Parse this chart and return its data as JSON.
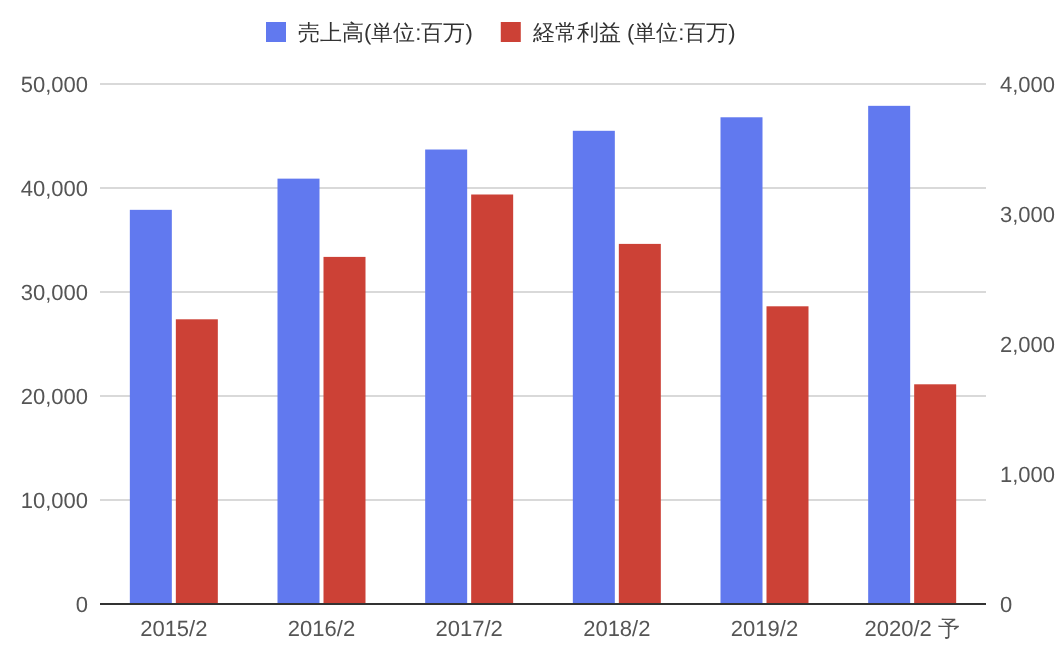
{
  "chart_data": {
    "type": "bar",
    "categories": [
      "2015/2",
      "2016/2",
      "2017/2",
      "2018/2",
      "2019/2",
      "2020/2 予"
    ],
    "series": [
      {
        "name": "売上高(単位:百万)",
        "color": "#6179ef",
        "values": [
          37900,
          40900,
          43700,
          45500,
          46800,
          47900
        ]
      },
      {
        "name": "経常利益 (単位:百万)",
        "color": "#cc4136",
        "axis": "y2",
        "values": [
          2190,
          2670,
          3150,
          2770,
          2290,
          1690
        ]
      }
    ],
    "ylim": [
      0,
      50000
    ],
    "yticks": [
      {
        "value": 0,
        "label": "0"
      },
      {
        "value": 10000,
        "label": "10,000"
      },
      {
        "value": 20000,
        "label": "20,000"
      },
      {
        "value": 30000,
        "label": "30,000"
      },
      {
        "value": 40000,
        "label": "40,000"
      },
      {
        "value": 50000,
        "label": "50,000"
      }
    ],
    "y2lim": [
      0,
      4000
    ],
    "y2ticks": [
      {
        "value": 0,
        "label": "0"
      },
      {
        "value": 1000,
        "label": "1,000"
      },
      {
        "value": 2000,
        "label": "2,000"
      },
      {
        "value": 3000,
        "label": "3,000"
      },
      {
        "value": 4000,
        "label": "4,000"
      }
    ],
    "grid": "y",
    "legend": "top"
  }
}
